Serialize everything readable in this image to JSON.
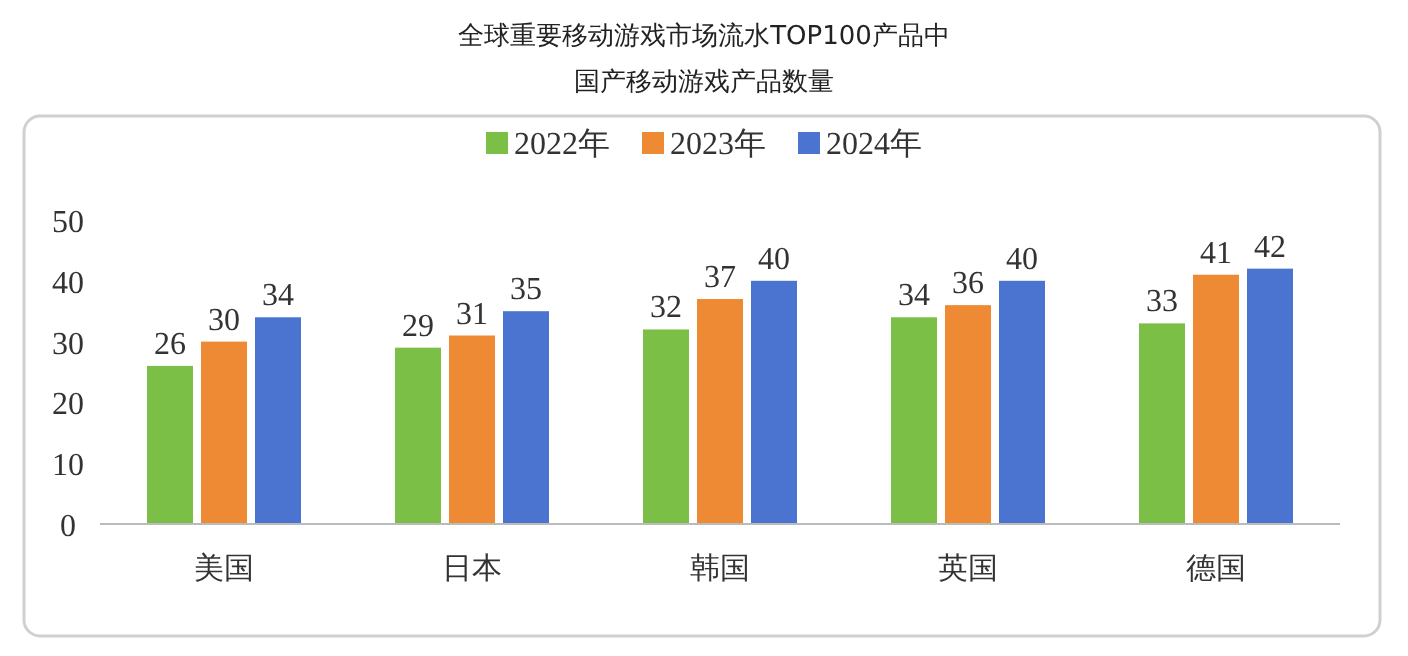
{
  "chart_data": {
    "type": "bar",
    "title": "全球重要移动游戏市场流水TOP100产品中",
    "subtitle": "国产移动游戏产品数量",
    "categories": [
      "美国",
      "日本",
      "韩国",
      "英国",
      "德国"
    ],
    "series": [
      {
        "name": "2022年",
        "color": "#7cbf46",
        "values": [
          26,
          29,
          32,
          34,
          33
        ]
      },
      {
        "name": "2023年",
        "color": "#ee8a34",
        "values": [
          30,
          31,
          37,
          36,
          41
        ]
      },
      {
        "name": "2024年",
        "color": "#4a74cf",
        "values": [
          34,
          35,
          40,
          40,
          42
        ]
      }
    ],
    "ylim": [
      0,
      50
    ],
    "yticks": [
      0,
      10,
      20,
      30,
      40,
      50
    ],
    "data_labels": true,
    "legend": "top",
    "grid": false
  }
}
